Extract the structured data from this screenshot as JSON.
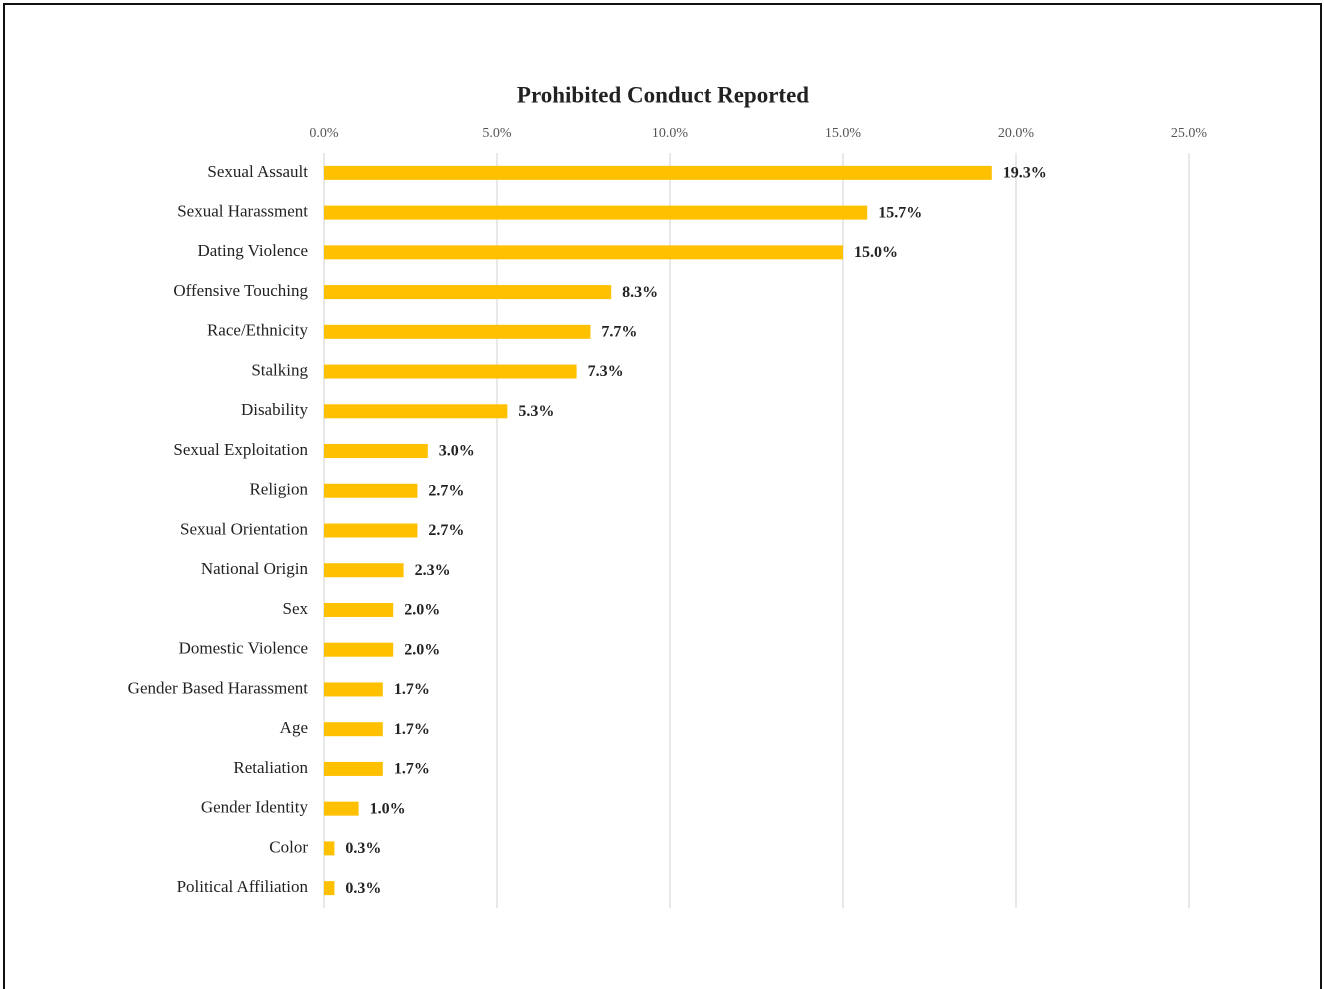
{
  "chart_data": {
    "type": "bar",
    "orientation": "horizontal",
    "title": "Prohibited Conduct Reported",
    "categories": [
      "Sexual Assault",
      "Sexual Harassment",
      "Dating Violence",
      "Offensive Touching",
      "Race/Ethnicity",
      "Stalking",
      "Disability",
      "Sexual Exploitation",
      "Religion",
      "Sexual Orientation",
      "National Origin",
      "Sex",
      "Domestic Violence",
      "Gender Based Harassment",
      "Age",
      "Retaliation",
      "Gender Identity",
      "Color",
      "Political Affiliation"
    ],
    "values": [
      19.3,
      15.7,
      15.0,
      8.3,
      7.7,
      7.3,
      5.3,
      3.0,
      2.7,
      2.7,
      2.3,
      2.0,
      2.0,
      1.7,
      1.7,
      1.7,
      1.0,
      0.3,
      0.3
    ],
    "value_labels": [
      "19.3%",
      "15.7%",
      "15.0%",
      "8.3%",
      "7.7%",
      "7.3%",
      "5.3%",
      "3.0%",
      "2.7%",
      "2.7%",
      "2.3%",
      "2.0%",
      "2.0%",
      "1.7%",
      "1.7%",
      "1.7%",
      "1.0%",
      "0.3%",
      "0.3%"
    ],
    "color": "#ffc000",
    "xlim": [
      0,
      25
    ],
    "xticks": [
      {
        "value": 0,
        "label": "0.0%"
      },
      {
        "value": 5,
        "label": "5.0%"
      },
      {
        "value": 10,
        "label": "10.0%"
      },
      {
        "value": 15,
        "label": "15.0%"
      },
      {
        "value": 20,
        "label": "20.0%"
      },
      {
        "value": 25,
        "label": "25.0%"
      }
    ],
    "grid": true
  }
}
